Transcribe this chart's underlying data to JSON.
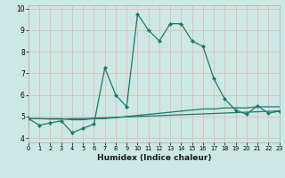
{
  "xlabel": "Humidex (Indice chaleur)",
  "bg_color": "#cce8e4",
  "grid_color": "#ffffff",
  "line_color": "#1a7a6e",
  "x_values": [
    0,
    1,
    2,
    3,
    4,
    5,
    6,
    7,
    8,
    9,
    10,
    11,
    12,
    13,
    14,
    15,
    16,
    17,
    18,
    19,
    20,
    21,
    22,
    23
  ],
  "y_main": [
    4.9,
    4.6,
    4.7,
    4.8,
    4.25,
    4.45,
    4.65,
    7.25,
    6.0,
    5.45,
    9.75,
    9.0,
    8.5,
    9.3,
    9.3,
    8.5,
    8.25,
    6.75,
    5.8,
    5.3,
    5.1,
    5.5,
    5.15,
    5.25
  ],
  "y_line2": [
    4.9,
    4.9,
    4.9,
    4.9,
    4.85,
    4.85,
    4.9,
    4.9,
    4.95,
    5.0,
    5.05,
    5.1,
    5.15,
    5.2,
    5.25,
    5.3,
    5.35,
    5.35,
    5.4,
    5.4,
    5.4,
    5.45,
    5.45,
    5.45
  ],
  "y_line3": [
    4.9,
    4.9,
    4.88,
    4.88,
    4.9,
    4.9,
    4.92,
    4.94,
    4.96,
    4.98,
    5.0,
    5.02,
    5.04,
    5.06,
    5.08,
    5.1,
    5.12,
    5.14,
    5.16,
    5.18,
    5.2,
    5.22,
    5.24,
    5.26
  ],
  "xlim": [
    0,
    23
  ],
  "ylim": [
    3.8,
    10.15
  ],
  "yticks": [
    4,
    5,
    6,
    7,
    8,
    9,
    10
  ],
  "xticks": [
    0,
    1,
    2,
    3,
    4,
    5,
    6,
    7,
    8,
    9,
    10,
    11,
    12,
    13,
    14,
    15,
    16,
    17,
    18,
    19,
    20,
    21,
    22,
    23
  ],
  "grid_line_color": "#e8b8b8",
  "spine_color": "#aaaaaa"
}
